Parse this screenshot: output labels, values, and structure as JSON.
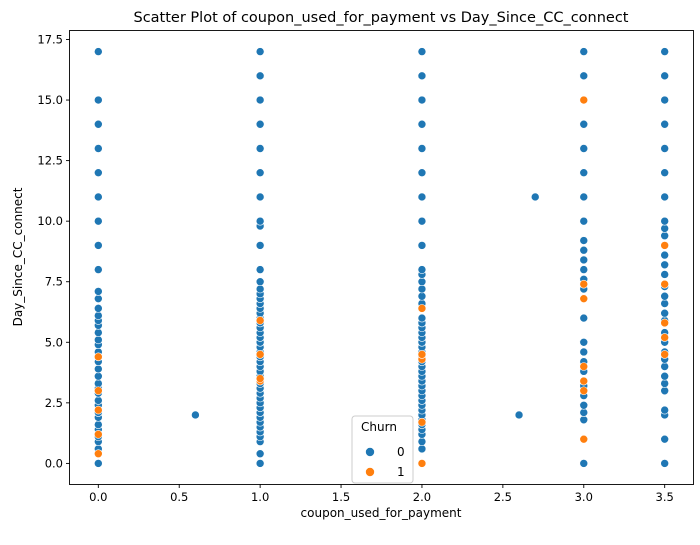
{
  "chart_data": {
    "type": "scatter",
    "title": "Scatter Plot of coupon_used_for_payment vs Day_Since_CC_connect",
    "xlabel": "coupon_used_for_payment",
    "ylabel": "Day_Since_CC_connect",
    "xlim": [
      -0.175,
      3.675
    ],
    "ylim": [
      -0.85,
      17.85
    ],
    "xticks": [
      "0.0",
      "0.5",
      "1.0",
      "1.5",
      "2.0",
      "2.5",
      "3.0",
      "3.5"
    ],
    "xtick_values": [
      0,
      0.5,
      1,
      1.5,
      2,
      2.5,
      3,
      3.5
    ],
    "yticks": [
      "0.0",
      "2.5",
      "5.0",
      "7.5",
      "10.0",
      "12.5",
      "15.0",
      "17.5"
    ],
    "ytick_values": [
      0,
      2.5,
      5,
      7.5,
      10,
      12.5,
      15,
      17.5
    ],
    "grid": false,
    "legend": {
      "title": "Churn",
      "placement": "lower-center"
    },
    "series": [
      {
        "name": "0",
        "color": "#1f77b4",
        "points": [
          [
            0,
            0
          ],
          [
            0,
            0.6
          ],
          [
            0,
            0.9
          ],
          [
            0,
            1.1
          ],
          [
            0,
            1.4
          ],
          [
            0,
            1.6
          ],
          [
            0,
            1.9
          ],
          [
            0,
            2.1
          ],
          [
            0,
            2.4
          ],
          [
            0,
            2.6
          ],
          [
            0,
            2.9
          ],
          [
            0,
            3.1
          ],
          [
            0,
            3.3
          ],
          [
            0,
            3.6
          ],
          [
            0,
            3.9
          ],
          [
            0,
            4.2
          ],
          [
            0,
            4.6
          ],
          [
            0,
            4.9
          ],
          [
            0,
            5.1
          ],
          [
            0,
            5.4
          ],
          [
            0,
            5.7
          ],
          [
            0,
            5.9
          ],
          [
            0,
            6.1
          ],
          [
            0,
            6.4
          ],
          [
            0,
            6.8
          ],
          [
            0,
            7.1
          ],
          [
            0,
            8
          ],
          [
            0,
            9
          ],
          [
            0,
            10
          ],
          [
            0,
            11
          ],
          [
            0,
            12
          ],
          [
            0,
            13
          ],
          [
            0,
            14
          ],
          [
            0,
            15
          ],
          [
            0,
            17
          ],
          [
            0.6,
            2
          ],
          [
            1,
            0
          ],
          [
            1,
            0.4
          ],
          [
            1,
            0.9
          ],
          [
            1,
            1.1
          ],
          [
            1,
            1.3
          ],
          [
            1,
            1.5
          ],
          [
            1,
            1.7
          ],
          [
            1,
            1.9
          ],
          [
            1,
            2.1
          ],
          [
            1,
            2.3
          ],
          [
            1,
            2.5
          ],
          [
            1,
            2.7
          ],
          [
            1,
            2.9
          ],
          [
            1,
            3.1
          ],
          [
            1,
            3.3
          ],
          [
            1,
            3.6
          ],
          [
            1,
            3.8
          ],
          [
            1,
            4
          ],
          [
            1,
            4.2
          ],
          [
            1,
            4.4
          ],
          [
            1,
            4.6
          ],
          [
            1,
            4.8
          ],
          [
            1,
            5
          ],
          [
            1,
            5.2
          ],
          [
            1,
            5.4
          ],
          [
            1,
            5.6
          ],
          [
            1,
            5.8
          ],
          [
            1,
            6
          ],
          [
            1,
            6.2
          ],
          [
            1,
            6.4
          ],
          [
            1,
            6.6
          ],
          [
            1,
            6.8
          ],
          [
            1,
            7
          ],
          [
            1,
            7.2
          ],
          [
            1,
            7.5
          ],
          [
            1,
            8
          ],
          [
            1,
            9
          ],
          [
            1,
            9.8
          ],
          [
            1,
            10
          ],
          [
            1,
            11
          ],
          [
            1,
            12
          ],
          [
            1,
            13
          ],
          [
            1,
            14
          ],
          [
            1,
            15
          ],
          [
            1,
            16
          ],
          [
            1,
            17
          ],
          [
            2,
            0.6
          ],
          [
            2,
            0.9
          ],
          [
            2,
            1.2
          ],
          [
            2,
            1.4
          ],
          [
            2,
            1.6
          ],
          [
            2,
            1.8
          ],
          [
            2,
            2
          ],
          [
            2,
            2.2
          ],
          [
            2,
            2.4
          ],
          [
            2,
            2.6
          ],
          [
            2,
            2.8
          ],
          [
            2,
            3
          ],
          [
            2,
            3.2
          ],
          [
            2,
            3.4
          ],
          [
            2,
            3.6
          ],
          [
            2,
            3.8
          ],
          [
            2,
            4
          ],
          [
            2,
            4.2
          ],
          [
            2,
            4.4
          ],
          [
            2,
            4.6
          ],
          [
            2,
            4.8
          ],
          [
            2,
            5
          ],
          [
            2,
            5.2
          ],
          [
            2,
            5.4
          ],
          [
            2,
            5.6
          ],
          [
            2,
            5.8
          ],
          [
            2,
            6
          ],
          [
            2,
            6.6
          ],
          [
            2,
            6.9
          ],
          [
            2,
            7.2
          ],
          [
            2,
            7.5
          ],
          [
            2,
            7.8
          ],
          [
            2,
            8
          ],
          [
            2,
            9
          ],
          [
            2,
            10
          ],
          [
            2,
            11
          ],
          [
            2,
            12
          ],
          [
            2,
            13
          ],
          [
            2,
            14
          ],
          [
            2,
            15
          ],
          [
            2,
            16
          ],
          [
            2,
            17
          ],
          [
            2.6,
            2
          ],
          [
            2.7,
            11
          ],
          [
            3,
            0
          ],
          [
            3,
            1.8
          ],
          [
            3,
            2.1
          ],
          [
            3,
            2.4
          ],
          [
            3,
            2.8
          ],
          [
            3,
            3.2
          ],
          [
            3,
            3.8
          ],
          [
            3,
            4.2
          ],
          [
            3,
            4.6
          ],
          [
            3,
            5
          ],
          [
            3,
            6
          ],
          [
            3,
            7.2
          ],
          [
            3,
            7.6
          ],
          [
            3,
            8
          ],
          [
            3,
            8.4
          ],
          [
            3,
            8.8
          ],
          [
            3,
            9.2
          ],
          [
            3,
            10
          ],
          [
            3,
            11
          ],
          [
            3,
            12
          ],
          [
            3,
            13
          ],
          [
            3,
            14
          ],
          [
            3,
            16
          ],
          [
            3,
            17
          ],
          [
            3.5,
            0
          ],
          [
            3.5,
            1
          ],
          [
            3.5,
            2
          ],
          [
            3.5,
            2.2
          ],
          [
            3.5,
            3
          ],
          [
            3.5,
            3.3
          ],
          [
            3.5,
            3.6
          ],
          [
            3.5,
            4
          ],
          [
            3.5,
            4.3
          ],
          [
            3.5,
            4.6
          ],
          [
            3.5,
            5
          ],
          [
            3.5,
            5.4
          ],
          [
            3.5,
            5.9
          ],
          [
            3.5,
            6.2
          ],
          [
            3.5,
            6.6
          ],
          [
            3.5,
            6.9
          ],
          [
            3.5,
            7.3
          ],
          [
            3.5,
            7.8
          ],
          [
            3.5,
            8.2
          ],
          [
            3.5,
            8.6
          ],
          [
            3.5,
            9.4
          ],
          [
            3.5,
            9.7
          ],
          [
            3.5,
            10
          ],
          [
            3.5,
            11
          ],
          [
            3.5,
            12
          ],
          [
            3.5,
            13
          ],
          [
            3.5,
            14
          ],
          [
            3.5,
            15
          ],
          [
            3.5,
            16
          ],
          [
            3.5,
            17
          ]
        ]
      },
      {
        "name": "1",
        "color": "#ff7f0e",
        "points": [
          [
            0,
            0.4
          ],
          [
            0,
            1.2
          ],
          [
            0,
            2.2
          ],
          [
            0,
            3
          ],
          [
            0,
            4.4
          ],
          [
            1,
            3.4
          ],
          [
            1,
            3.5
          ],
          [
            1,
            4.5
          ],
          [
            1,
            5.9
          ],
          [
            2,
            0
          ],
          [
            2,
            1.7
          ],
          [
            2,
            4.3
          ],
          [
            2,
            4.5
          ],
          [
            2,
            6.4
          ],
          [
            3,
            1
          ],
          [
            3,
            3
          ],
          [
            3,
            3.4
          ],
          [
            3,
            4
          ],
          [
            3,
            6.8
          ],
          [
            3,
            7.4
          ],
          [
            3,
            15
          ],
          [
            3.5,
            4.5
          ],
          [
            3.5,
            5.2
          ],
          [
            3.5,
            5.8
          ],
          [
            3.5,
            7.4
          ],
          [
            3.5,
            9
          ]
        ]
      }
    ]
  }
}
